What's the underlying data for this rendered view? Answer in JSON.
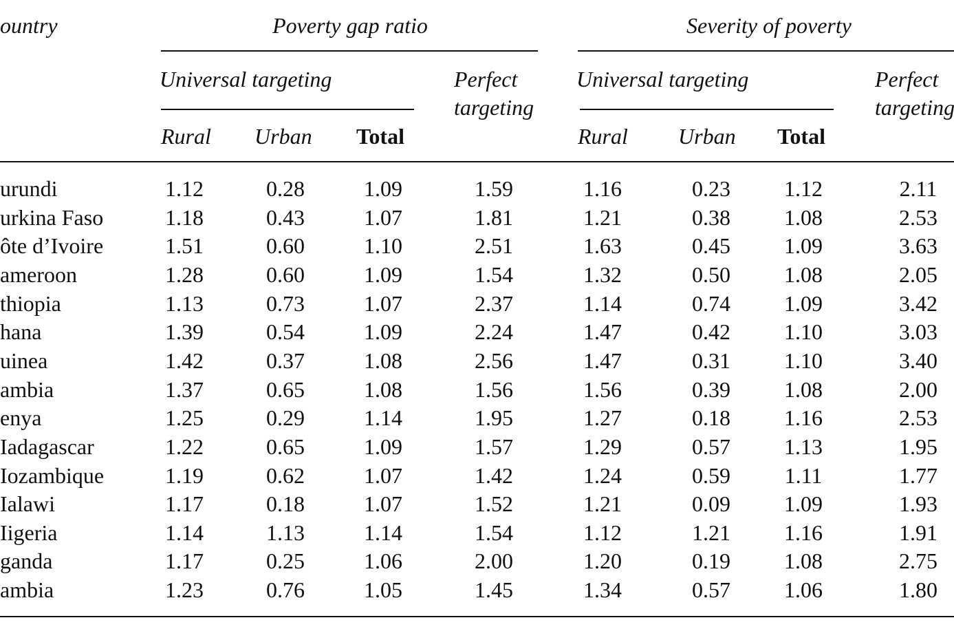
{
  "table": {
    "country_header": "ountry",
    "groups": [
      {
        "title": "Poverty gap ratio",
        "universal": "Universal targeting",
        "perfect": [
          "Perfect",
          "targeting"
        ],
        "rural": "Rural",
        "urban": "Urban",
        "total": "Total"
      },
      {
        "title": "Severity of poverty",
        "universal": "Universal targeting",
        "perfect": [
          "Perfect",
          "targeting"
        ],
        "rural": "Rural",
        "urban": "Urban",
        "total": "Total"
      }
    ],
    "rows": [
      [
        "urundi",
        "1.12",
        "0.28",
        "1.09",
        "1.59",
        "1.16",
        "0.23",
        "1.12",
        "2.11"
      ],
      [
        "urkina Faso",
        "1.18",
        "0.43",
        "1.07",
        "1.81",
        "1.21",
        "0.38",
        "1.08",
        "2.53"
      ],
      [
        "ôte d’Ivoire",
        "1.51",
        "0.60",
        "1.10",
        "2.51",
        "1.63",
        "0.45",
        "1.09",
        "3.63"
      ],
      [
        "ameroon",
        "1.28",
        "0.60",
        "1.09",
        "1.54",
        "1.32",
        "0.50",
        "1.08",
        "2.05"
      ],
      [
        "thiopia",
        "1.13",
        "0.73",
        "1.07",
        "2.37",
        "1.14",
        "0.74",
        "1.09",
        "3.42"
      ],
      [
        "hana",
        "1.39",
        "0.54",
        "1.09",
        "2.24",
        "1.47",
        "0.42",
        "1.10",
        "3.03"
      ],
      [
        "uinea",
        "1.42",
        "0.37",
        "1.08",
        "2.56",
        "1.47",
        "0.31",
        "1.10",
        "3.40"
      ],
      [
        "ambia",
        "1.37",
        "0.65",
        "1.08",
        "1.56",
        "1.56",
        "0.39",
        "1.08",
        "2.00"
      ],
      [
        "enya",
        "1.25",
        "0.29",
        "1.14",
        "1.95",
        "1.27",
        "0.18",
        "1.16",
        "2.53"
      ],
      [
        "Iadagascar",
        "1.22",
        "0.65",
        "1.09",
        "1.57",
        "1.29",
        "0.57",
        "1.13",
        "1.95"
      ],
      [
        "Iozambique",
        "1.19",
        "0.62",
        "1.07",
        "1.42",
        "1.24",
        "0.59",
        "1.11",
        "1.77"
      ],
      [
        "Ialawi",
        "1.17",
        "0.18",
        "1.07",
        "1.52",
        "1.21",
        "0.09",
        "1.09",
        "1.93"
      ],
      [
        "Iigeria",
        "1.14",
        "1.13",
        "1.14",
        "1.54",
        "1.12",
        "1.21",
        "1.16",
        "1.91"
      ],
      [
        "ganda",
        "1.17",
        "0.25",
        "1.06",
        "2.00",
        "1.20",
        "0.19",
        "1.08",
        "2.75"
      ],
      [
        "ambia",
        "1.23",
        "0.76",
        "1.05",
        "1.45",
        "1.34",
        "0.57",
        "1.06",
        "1.80"
      ]
    ]
  }
}
